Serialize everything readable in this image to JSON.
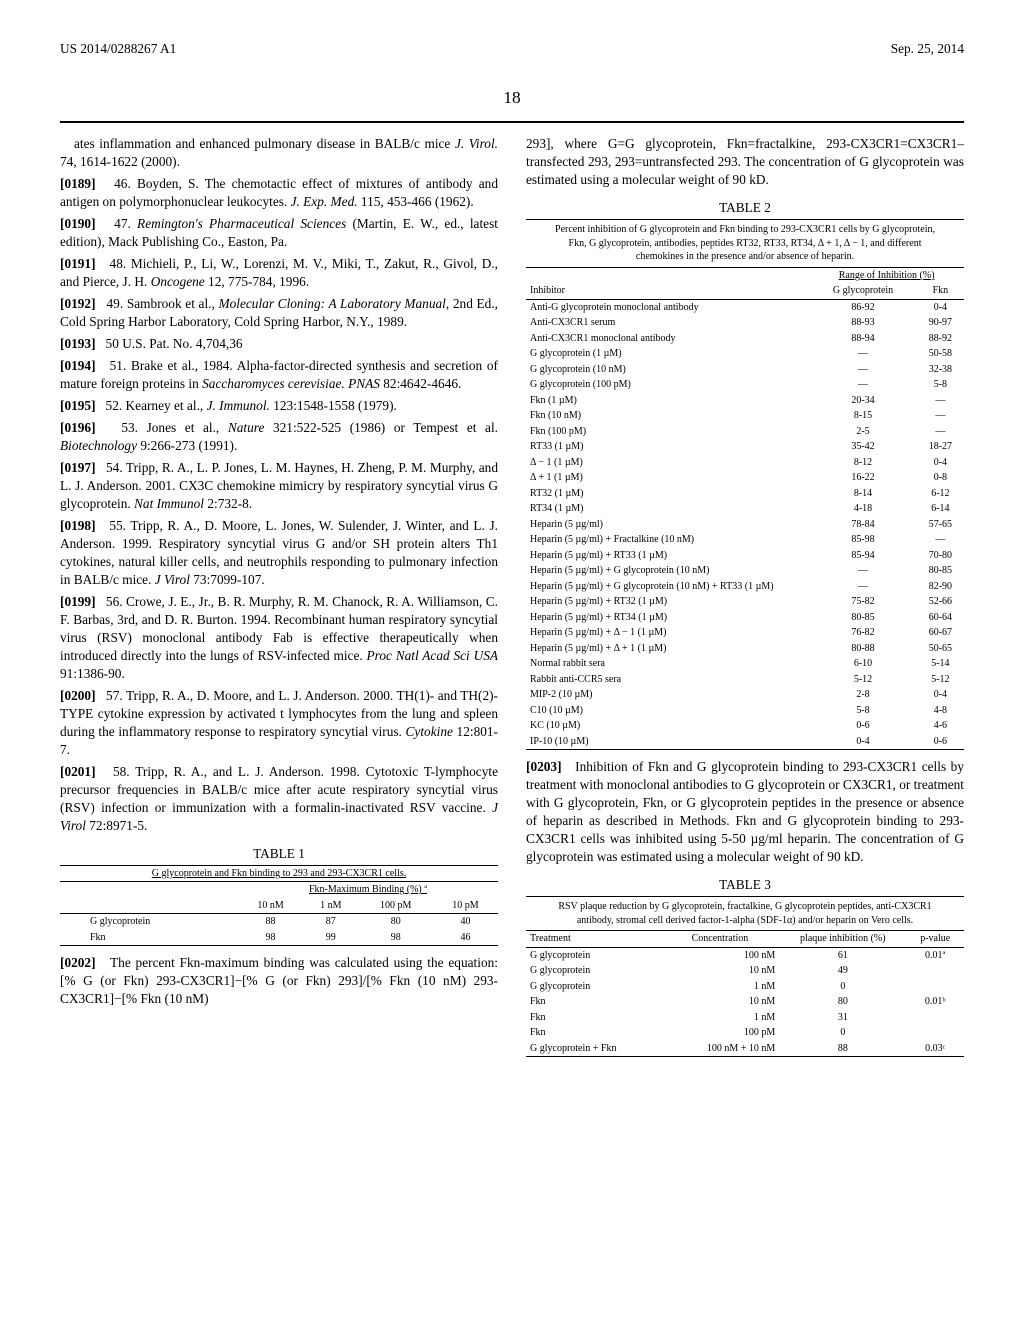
{
  "header": {
    "pub_number": "US 2014/0288267 A1",
    "pub_date": "Sep. 25, 2014",
    "page_number": "18"
  },
  "left_col": {
    "intro": "ates inflammation and enhanced pulmonary disease in BALB/c mice ",
    "intro_ital": "J. Virol.",
    "intro_tail": " 74, 1614-1622 (2000).",
    "refs": [
      {
        "num": "[0189]",
        "text": "46. Boyden, S. The chemotactic effect of mixtures of antibody and antigen on polymorphonuclear leukocytes. ",
        "ital": "J. Exp. Med.",
        "tail": " 115, 453-466 (1962)."
      },
      {
        "num": "[0190]",
        "text": "47. ",
        "ital": "Remington's Pharmaceutical Sciences",
        "tail": " (Martin, E. W., ed., latest edition), Mack Publishing Co., Easton, Pa."
      },
      {
        "num": "[0191]",
        "text": "48. Michieli, P., Li, W., Lorenzi, M. V., Miki, T., Zakut, R., Givol, D., and Pierce, J. H. ",
        "ital": "Oncogene",
        "tail": " 12, 775-784, 1996."
      },
      {
        "num": "[0192]",
        "text": "49. Sambrook et al., ",
        "ital": "Molecular Cloning: A Laboratory Manual,",
        "tail": " 2nd Ed., Cold Spring Harbor Laboratory, Cold Spring Harbor, N.Y., 1989."
      },
      {
        "num": "[0193]",
        "text": "50 U.S. Pat. No. 4,704,36",
        "ital": "",
        "tail": ""
      },
      {
        "num": "[0194]",
        "text": "51. Brake et al., 1984. Alpha-factor-directed synthesis and secretion of mature foreign proteins in ",
        "ital": "Saccharomyces cerevisiae. PNAS",
        "tail": " 82:4642-4646."
      },
      {
        "num": "[0195]",
        "text": "52. Kearney et al., ",
        "ital": "J. Immunol.",
        "tail": " 123:1548-1558 (1979)."
      },
      {
        "num": "[0196]",
        "text": "53. Jones et al., ",
        "ital": "Nature",
        "tail": " 321:522-525 (1986) or Tempest et al. "
      },
      {
        "num_extra": "",
        "text_extra": "",
        "ital_extra": "Biotechnology",
        "tail_extra": " 9:266-273 (1991)."
      },
      {
        "num": "[0197]",
        "text": "54. Tripp, R. A., L. P. Jones, L. M. Haynes, H. Zheng, P. M. Murphy, and L. J. Anderson. 2001. CX3C chemokine mimicry by respiratory syncytial virus G glycoprotein. ",
        "ital": "Nat Immunol",
        "tail": " 2:732-8."
      },
      {
        "num": "[0198]",
        "text": "55. Tripp, R. A., D. Moore, L. Jones, W. Sulender, J. Winter, and L. J. Anderson. 1999. Respiratory syncytial virus G and/or SH protein alters Th1 cytokines, natural killer cells, and neutrophils responding to pulmonary infection in BALB/c mice. ",
        "ital": "J Virol",
        "tail": " 73:7099-107."
      },
      {
        "num": "[0199]",
        "text": "56. Crowe, J. E., Jr., B. R. Murphy, R. M. Chanock, R. A. Williamson, C. F. Barbas, 3rd, and D. R. Burton. 1994. Recombinant human respiratory syncytial virus (RSV) monoclonal antibody Fab is effective therapeutically when introduced directly into the lungs of RSV-infected mice. ",
        "ital": "Proc Natl Acad Sci USA",
        "tail": " 91:1386-90."
      },
      {
        "num": "[0200]",
        "text": "57. Tripp, R. A., D. Moore, and L. J. Anderson. 2000. TH(1)- and TH(2)-TYPE cytokine expression by activated t lymphocytes from the lung and spleen during the inflammatory response to respiratory syncytial virus. ",
        "ital": "Cytokine",
        "tail": " 12:801-7."
      },
      {
        "num": "[0201]",
        "text": "58. Tripp, R. A., and L. J. Anderson. 1998. Cytotoxic T-lymphocyte precursor frequencies in BALB/c mice after acute respiratory syncytial virus (RSV) infection or immunization with a formalin-inactivated RSV vaccine. ",
        "ital": "J Virol",
        "tail": " 72:8971-5."
      }
    ],
    "table1": {
      "title": "TABLE 1",
      "subtitle": "G glycoprotein and Fkn binding to 293 and 293-CX3CR1 cells.",
      "header_span": "Fkn-Maximum Binding (%) ª",
      "cols": [
        "10 nM",
        "1 nM",
        "100 pM",
        "10 pM"
      ],
      "rows": [
        {
          "label": "G glycoprotein",
          "v": [
            "88",
            "87",
            "80",
            "40"
          ]
        },
        {
          "label": "Fkn",
          "v": [
            "98",
            "99",
            "98",
            "46"
          ]
        }
      ]
    },
    "para0202_num": "[0202]",
    "para0202": "The percent Fkn-maximum binding was calculated using the equation: [% G (or Fkn) 293-CX3CR1]−[% G (or Fkn) 293]/[% Fkn (10 nM) 293-CX3CR1]−[% Fkn (10 nM)"
  },
  "right_col": {
    "cont": "293], where G=G glycoprotein, Fkn=fractalkine, 293-CX3CR1=CX3CR1–transfected 293, 293=untransfected 293. The concentration of G glycoprotein was estimated using a molecular weight of 90 kD.",
    "table2": {
      "title": "TABLE 2",
      "subtitle": "Percent inhibition of G glycoprotein and Fkn binding to 293-CX3CR1 cells by G glycoprotein, Fkn, G glycoprotein, antibodies, peptides RT32, RT33, RT34, Δ + 1, Δ − 1, and different chemokines in the presence and/or absence of heparin.",
      "range_header": "Range of Inhibition (%)",
      "subcols": [
        "G glycoprotein",
        "Fkn"
      ],
      "col1_header": "Inhibitor",
      "rows": [
        [
          "Anti-G glycoprotein monoclonal antibody",
          "86-92",
          "0-4"
        ],
        [
          "Anti-CX3CR1 serum",
          "88-93",
          "90-97"
        ],
        [
          "Anti-CX3CR1 monoclonal antibody",
          "88-94",
          "88-92"
        ],
        [
          "G glycoprotein (1 µM)",
          "—",
          "50-58"
        ],
        [
          "G glycoprotein (10 nM)",
          "—",
          "32-38"
        ],
        [
          "G glycoprotein (100 pM)",
          "—",
          "5-8"
        ],
        [
          "Fkn (1 µM)",
          "20-34",
          "—"
        ],
        [
          "Fkn (10 nM)",
          "8-15",
          "—"
        ],
        [
          "Fkn (100 pM)",
          "2-5",
          "—"
        ],
        [
          "RT33 (1 µM)",
          "35-42",
          "18-27"
        ],
        [
          "Δ − 1 (1 µM)",
          "8-12",
          "0-4"
        ],
        [
          "Δ + 1 (1 µM)",
          "16-22",
          "0-8"
        ],
        [
          "RT32 (1 µM)",
          "8-14",
          "6-12"
        ],
        [
          "RT34 (1 µM)",
          "4-18",
          "6-14"
        ],
        [
          "Heparin (5 µg/ml)",
          "78-84",
          "57-65"
        ],
        [
          "Heparin (5 µg/ml) + Fractalkine (10 nM)",
          "85-98",
          "—"
        ],
        [
          "Heparin (5 µg/ml) + RT33 (1 µM)",
          "85-94",
          "70-80"
        ],
        [
          "Heparin (5 µg/ml) + G glycoprotein (10 nM)",
          "—",
          "80-85"
        ],
        [
          "Heparin (5 µg/ml) + G glycoprotein (10 nM) + RT33 (1 µM)",
          "—",
          "82-90"
        ],
        [
          "Heparin (5 µg/ml) + RT32 (1 µM)",
          "75-82",
          "52-66"
        ],
        [
          "Heparin (5 µg/ml) + RT34 (1 µM)",
          "80-85",
          "60-64"
        ],
        [
          "Heparin (5 µg/ml) + Δ − 1 (1 µM)",
          "76-82",
          "60-67"
        ],
        [
          "Heparin (5 µg/ml) + Δ + 1 (1 µM)",
          "80-88",
          "50-65"
        ],
        [
          "Normal rabbit sera",
          "6-10",
          "5-14"
        ],
        [
          "Rabbit anti-CCR5 sera",
          "5-12",
          "5-12"
        ],
        [
          "MIP-2 (10 µM)",
          "2-8",
          "0-4"
        ],
        [
          "C10 (10 µM)",
          "5-8",
          "4-8"
        ],
        [
          "KC (10 µM)",
          "0-6",
          "4-6"
        ],
        [
          "IP-10 (10 µM)",
          "0-4",
          "0-6"
        ]
      ]
    },
    "para0203_num": "[0203]",
    "para0203": "Inhibition of Fkn and G glycoprotein binding to 293-CX3CR1 cells by treatment with monoclonal antibodies to G glycoprotein or CX3CR1, or treatment with G glycoprotein, Fkn, or G glycoprotein peptides in the presence or absence of heparin as described in Methods. Fkn and G glycoprotein binding to 293-CX3CR1 cells was inhibited using 5-50 µg/ml heparin. The concentration of G glycoprotein was estimated using a molecular weight of 90 kD.",
    "table3": {
      "title": "TABLE 3",
      "subtitle": "RSV plaque reduction by G glycoprotein, fractalkine, G glycoprotein peptides, anti-CX3CR1 antibody, stromal cell derived factor-1-alpha (SDF-1α) and/or heparin on Vero cells.",
      "cols": [
        "Treatment",
        "Concentration",
        "plaque inhibition (%)",
        "p-value"
      ],
      "rows": [
        [
          "G glycoprotein",
          "100  nM",
          "61",
          "0.01ª"
        ],
        [
          "G glycoprotein",
          "10  nM",
          "49",
          ""
        ],
        [
          "G glycoprotein",
          "1  nM",
          "0",
          ""
        ],
        [
          "Fkn",
          "10  nM",
          "80",
          "0.01ᵇ"
        ],
        [
          "Fkn",
          "1  nM",
          "31",
          ""
        ],
        [
          "Fkn",
          "100  pM",
          "0",
          ""
        ],
        [
          "G glycoprotein + Fkn",
          "100 nM + 10 nM",
          "88",
          "0.03ᶜ"
        ]
      ]
    }
  }
}
